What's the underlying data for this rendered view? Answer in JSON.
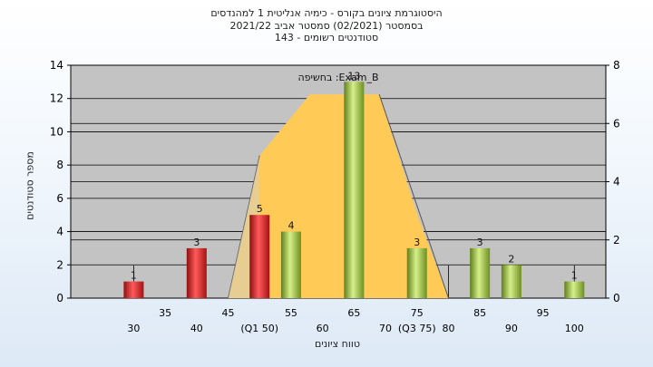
{
  "title_lines": [
    "היסטוגרמת ציונים בקורס - כימיה אנליטית 1 למהנדסים",
    "בסמסטר  (02/2021)  סמסטר אביב 2021/22",
    "סטודנטים רשומים - 143"
  ],
  "chart_data": {
    "type": "bar",
    "title": "היסטוגרמת ציונים בקורס - כימיה אנליטית 1 למהנדסים",
    "xlabel": "טווח ציונים",
    "ylabel": "מספר סטודנטים",
    "xlim": [
      20,
      105
    ],
    "ylim": [
      0,
      14
    ],
    "y2lim": [
      0,
      8
    ],
    "x_ticks_top": [
      "35",
      "45",
      "55",
      "65",
      "75",
      "85",
      "95"
    ],
    "x_ticks_bottom": [
      "30",
      "40",
      "(Q1 50)",
      "60",
      "70",
      "(Q3 75)",
      "80",
      "90",
      "100"
    ],
    "y_ticks": [
      0,
      2,
      4,
      6,
      8,
      10,
      12,
      14
    ],
    "y2_ticks": [
      0,
      2,
      4,
      6,
      8
    ],
    "grid": true,
    "bars": [
      {
        "x": 30,
        "value": 1,
        "label": "1",
        "color": "red"
      },
      {
        "x": 40,
        "value": 3,
        "label": "3",
        "color": "red"
      },
      {
        "x": 50,
        "value": 5,
        "label": "5",
        "color": "red"
      },
      {
        "x": 55,
        "value": 4,
        "label": "4",
        "color": "green"
      },
      {
        "x": 65,
        "value": 13,
        "label": "13",
        "color": "green"
      },
      {
        "x": 75,
        "value": 3,
        "label": "3",
        "color": "green"
      },
      {
        "x": 85,
        "value": 3,
        "label": "3",
        "color": "green"
      },
      {
        "x": 90,
        "value": 2,
        "label": "2",
        "color": "green"
      },
      {
        "x": 100,
        "value": 1,
        "label": "1",
        "color": "green"
      }
    ],
    "distribution": {
      "label": "בחשיפה :Exam_B",
      "min": 45,
      "q1": 50,
      "q3": 75,
      "max": 80,
      "top_from": 58,
      "top_to": 69,
      "top_value": 7.0,
      "q1_value": 4.9,
      "q3_value": 2.9,
      "color": "#ffca55"
    }
  },
  "colors": {
    "plot_bg": "#c3c3c3",
    "grid": "#000000",
    "red_bar": "#e02020",
    "green_bar": "#9cc43c",
    "band": "#ffca55"
  }
}
